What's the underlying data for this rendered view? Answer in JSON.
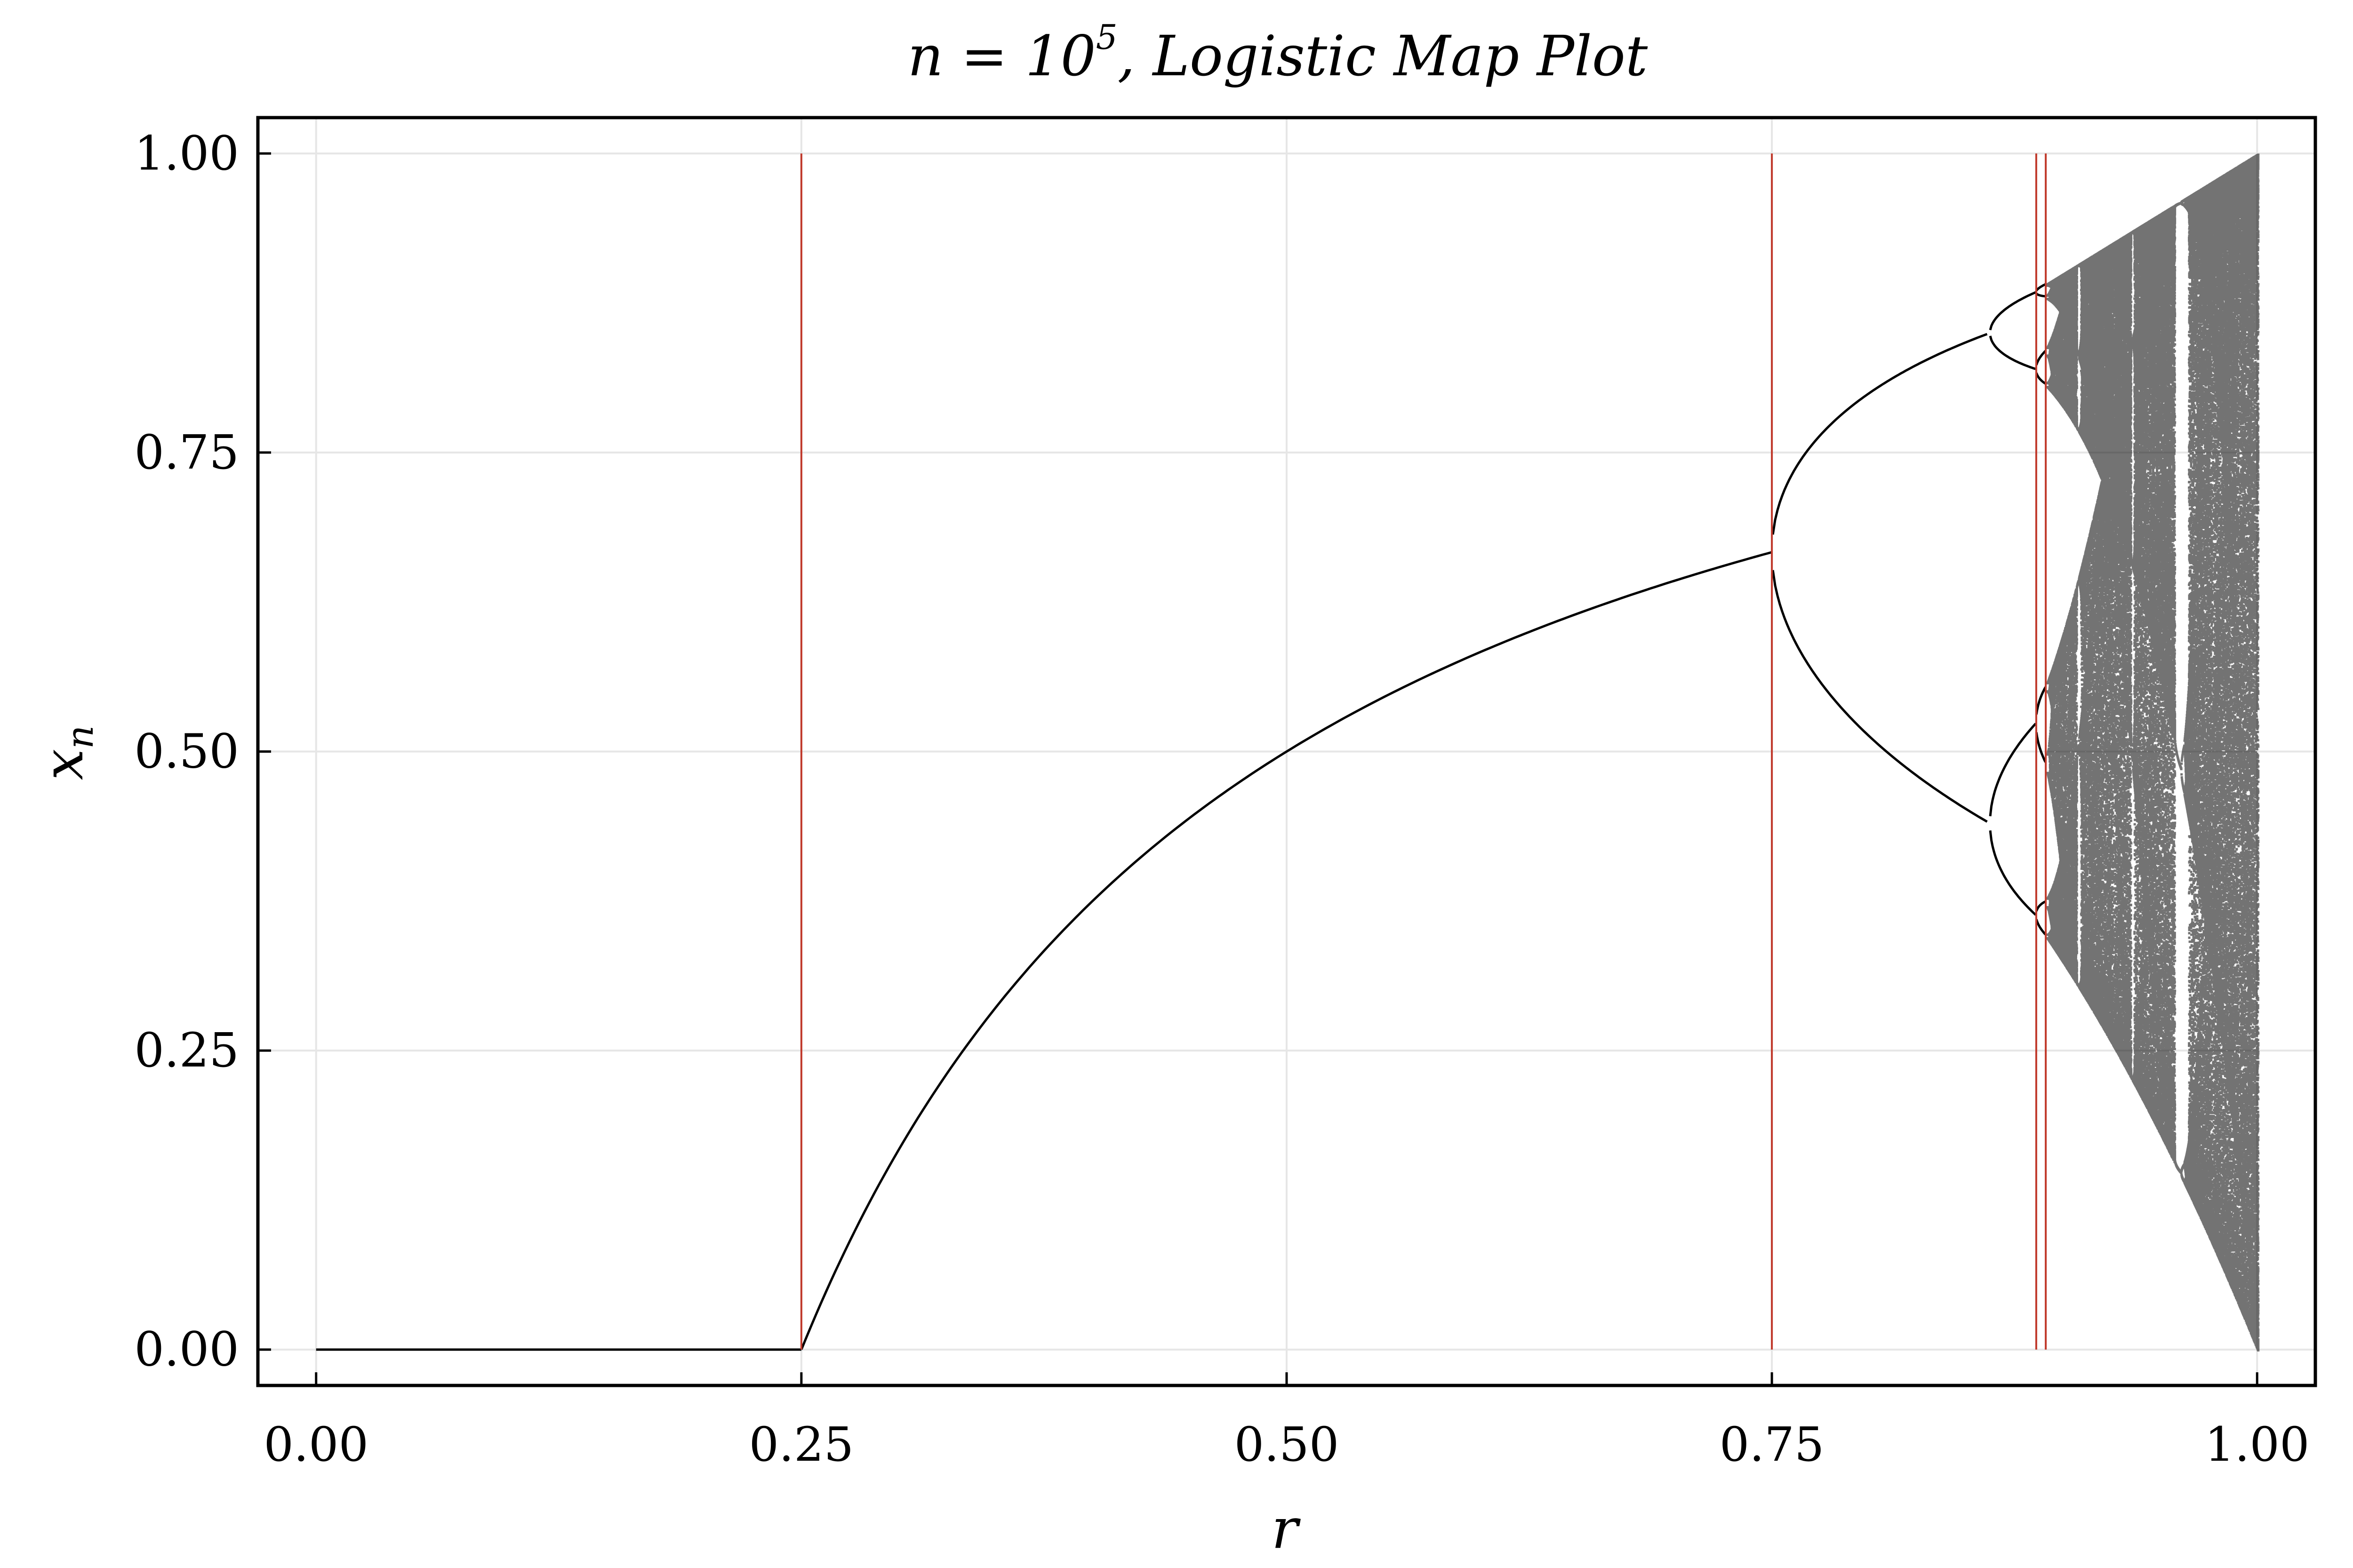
{
  "chart_data": {
    "type": "scatter",
    "title": {
      "prefix": "n = 10",
      "superscript": "5",
      "suffix": ",  Logistic Map Plot"
    },
    "xlabel": "r",
    "ylabel": "x",
    "ylabel_subscript": "n",
    "xlim": [
      -0.03,
      1.03
    ],
    "ylim": [
      -0.03,
      1.03
    ],
    "grid": true,
    "legend": "none",
    "xticks": [
      {
        "value": 0.0,
        "label": "0.00"
      },
      {
        "value": 0.25,
        "label": "0.25"
      },
      {
        "value": 0.5,
        "label": "0.50"
      },
      {
        "value": 0.75,
        "label": "0.75"
      },
      {
        "value": 1.0,
        "label": "1.00"
      }
    ],
    "yticks": [
      {
        "value": 0.0,
        "label": "0.00"
      },
      {
        "value": 0.25,
        "label": "0.25"
      },
      {
        "value": 0.5,
        "label": "0.50"
      },
      {
        "value": 0.75,
        "label": "0.75"
      },
      {
        "value": 1.0,
        "label": "1.00"
      }
    ],
    "vertical_lines": {
      "color": "#c0392b",
      "x": [
        0.25,
        0.75,
        0.8862,
        0.8911
      ],
      "y_range": [
        0.0,
        1.0
      ]
    },
    "series": [
      {
        "color": "#000000",
        "description_points": [
          {
            "r": 0.0,
            "x": 0.0
          },
          {
            "r": 0.25,
            "x": 0.0
          },
          {
            "r": 0.5,
            "x": 0.5
          },
          {
            "r": 0.75,
            "x": 0.667
          },
          {
            "r": 0.865,
            "x": 0.85
          },
          {
            "r": 0.865,
            "x": 0.44
          },
          {
            "r": 0.917,
            "x": 0.73
          },
          {
            "r": 0.96,
            "x": 0.15
          },
          {
            "r": 1.0,
            "x": 1.0
          },
          {
            "r": 1.0,
            "x": 0.0
          }
        ]
      }
    ]
  },
  "colors": {
    "background": "#ffffff",
    "grid": "#e6e6e6",
    "series": "#000000",
    "marker_lines": "#c0392b"
  }
}
